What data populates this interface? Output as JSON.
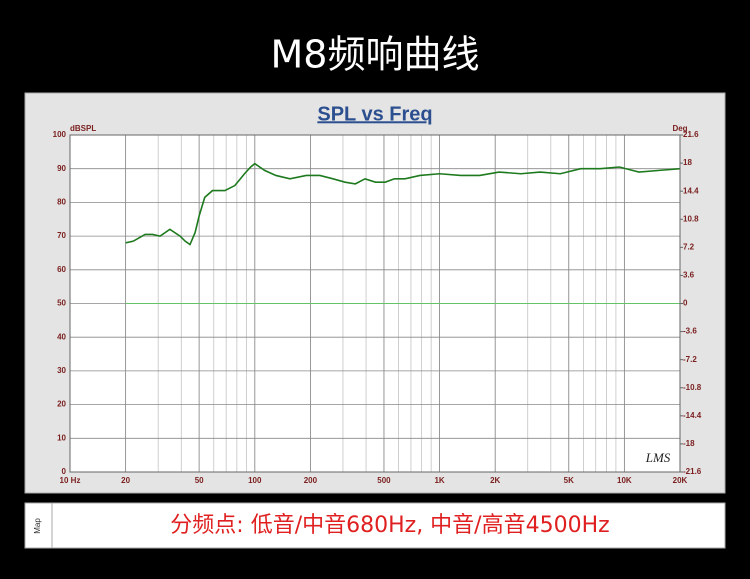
{
  "header": {
    "title": "M8频响曲线"
  },
  "chart_data": {
    "type": "line",
    "title": "SPL vs Freq",
    "y_unit": "dBSPL",
    "y2_unit": "Deg",
    "log_x": true,
    "grid": true,
    "minor_grid": true,
    "xlim": [
      10,
      20000
    ],
    "ylim": [
      0,
      100
    ],
    "y2lim": [
      -21.6,
      21.6
    ],
    "xticks": [
      {
        "value": 10,
        "label": "10 Hz"
      },
      20,
      50,
      100,
      200,
      500,
      {
        "value": 1000,
        "label": "1K"
      },
      {
        "value": 2000,
        "label": "2K"
      },
      {
        "value": 5000,
        "label": "5K"
      },
      {
        "value": 10000,
        "label": "10K"
      },
      {
        "value": 20000,
        "label": "20K"
      }
    ],
    "yticks": [
      0,
      10,
      20,
      30,
      40,
      50,
      60,
      70,
      80,
      90,
      100
    ],
    "y2ticks": [
      -21.6,
      -18,
      -14.4,
      -10.8,
      -7.2,
      -3.6,
      0,
      3.6,
      7.2,
      10.8,
      14.4,
      18,
      21.6
    ],
    "series": [
      {
        "color": "#1e7a1e",
        "x": [
          20,
          22,
          25.5,
          28,
          30.7,
          34.7,
          39.4,
          42,
          44.6,
          47.5,
          50,
          53.6,
          59,
          68.9,
          78,
          88,
          95,
          100,
          113,
          130,
          155,
          190,
          225,
          265,
          308,
          350,
          395,
          450,
          508,
          570,
          650,
          783,
          1000,
          1300,
          1650,
          2100,
          2750,
          3500,
          4500,
          5800,
          7400,
          9400,
          12000,
          15500,
          20000
        ],
        "values": [
          68,
          68.5,
          70.5,
          70.5,
          70,
          72,
          70,
          68.5,
          67.5,
          71,
          76,
          81.5,
          83.5,
          83.5,
          85,
          88.5,
          90.5,
          91.5,
          89.5,
          88,
          87,
          88,
          88,
          87,
          86,
          85.5,
          87,
          86,
          86,
          87,
          87,
          88,
          88.5,
          88,
          88,
          89,
          88.5,
          89,
          88.5,
          90,
          90,
          90.5,
          89,
          89.5,
          90
        ]
      },
      {
        "color": "#66c266",
        "axis": "y2",
        "x": [
          20,
          20000
        ],
        "values": [
          0,
          0
        ]
      }
    ]
  },
  "watermark": "LMS",
  "footer": {
    "side_label": "Map",
    "note": "分频点: 低音/中音680Hz, 中音/高音4500Hz"
  }
}
